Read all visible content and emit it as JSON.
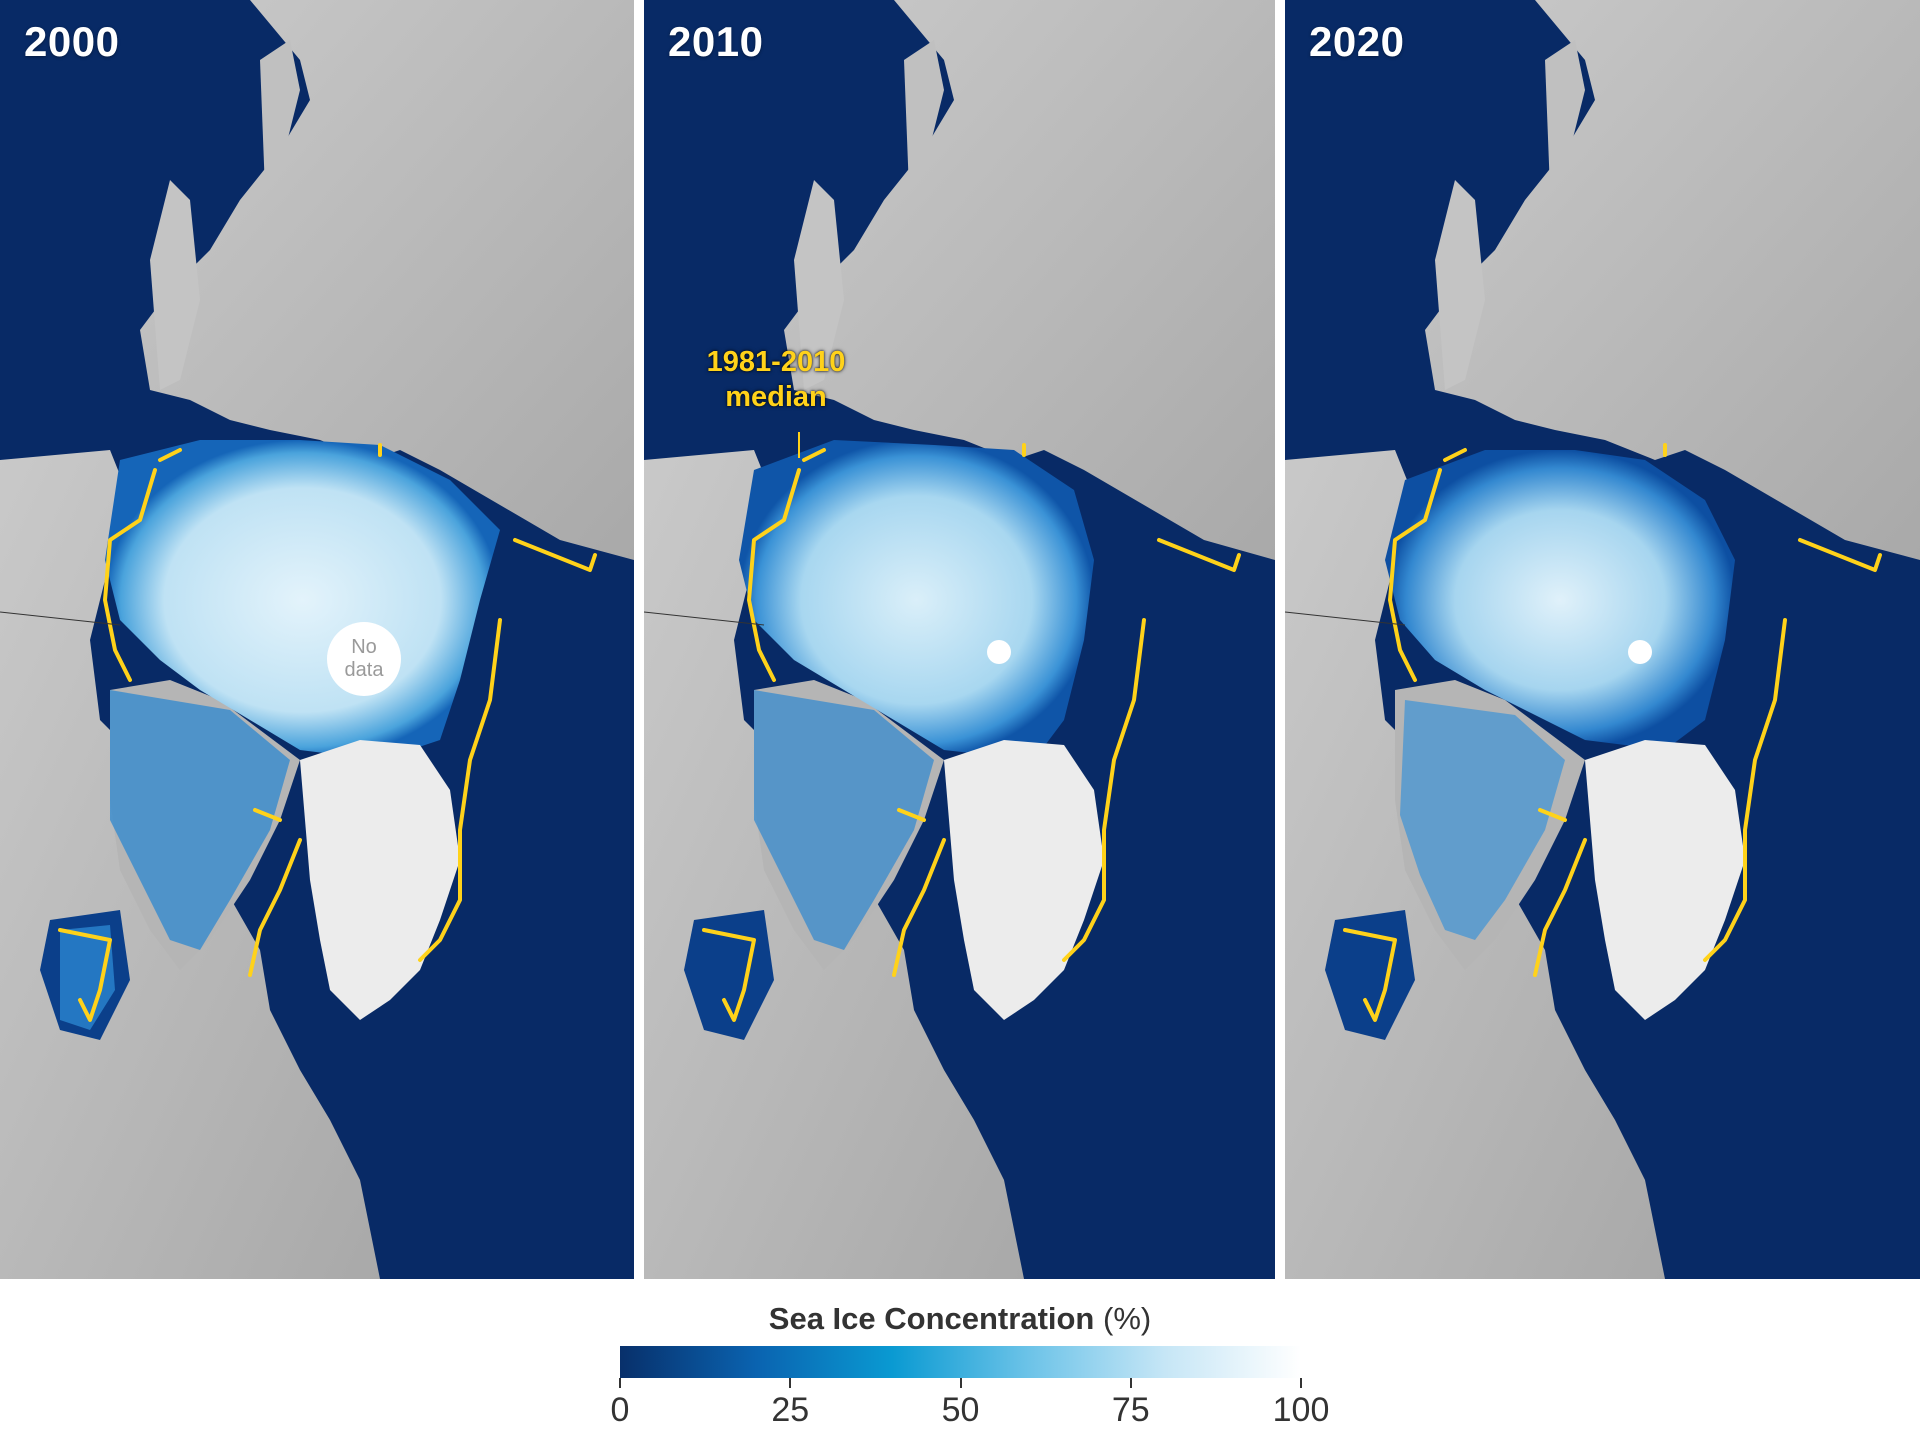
{
  "panels": [
    {
      "year": "2000",
      "pole_note": [
        "No",
        "data"
      ]
    },
    {
      "year": "2010",
      "annotation": [
        "1981-2010",
        "median"
      ]
    },
    {
      "year": "2020"
    }
  ],
  "legend": {
    "title": "Sea Ice Concentration",
    "unit": "(%)",
    "ticks": [
      "0",
      "25",
      "50",
      "75",
      "100"
    ],
    "range": [
      0,
      100
    ],
    "colors": [
      "#08306b",
      "#0a63b0",
      "#0a9ad2",
      "#6cc3e8",
      "#c6e6f6",
      "#ffffff"
    ]
  },
  "colors": {
    "ocean": "#082a66",
    "land": "#bdbdbd",
    "median_line": "#ffd21a",
    "greenland": "#eeeeee"
  }
}
